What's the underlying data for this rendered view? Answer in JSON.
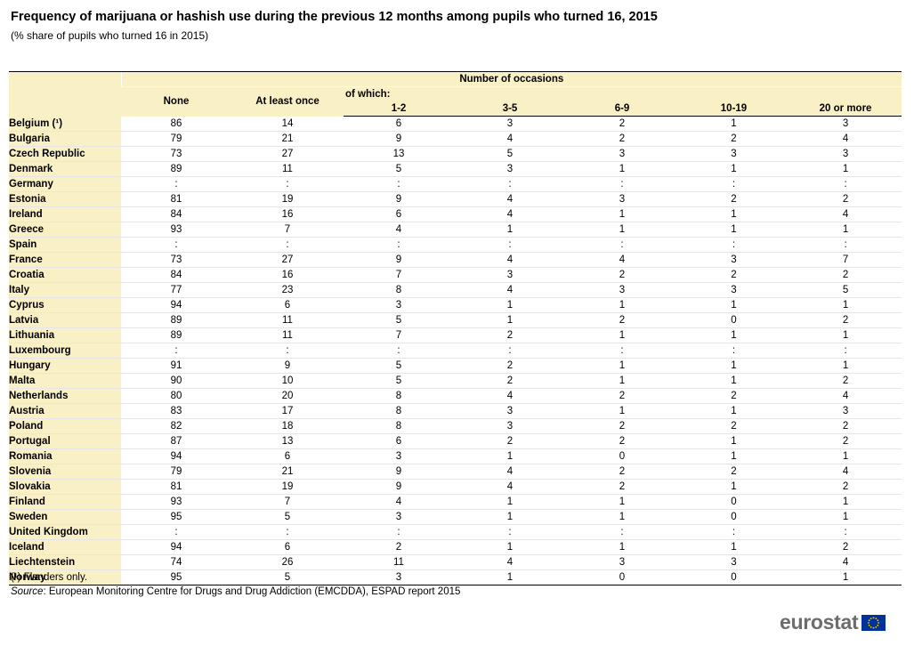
{
  "title": "Frequency of marijuana or hashish use during the previous 12 months among pupils who turned 16, 2015",
  "subtitle": "(% share of pupils who turned 16 in 2015)",
  "table": {
    "group_header": "Number of occasions",
    "of_which": "of which:",
    "columns": [
      "None",
      "At least once",
      "1-2",
      "3-5",
      "6-9",
      "10-19",
      "20 or more"
    ],
    "rows": [
      {
        "country": "Belgium (¹)",
        "values": [
          "86",
          "14",
          "6",
          "3",
          "2",
          "1",
          "3"
        ]
      },
      {
        "country": "Bulgaria",
        "values": [
          "79",
          "21",
          "9",
          "4",
          "2",
          "2",
          "4"
        ]
      },
      {
        "country": "Czech Republic",
        "values": [
          "73",
          "27",
          "13",
          "5",
          "3",
          "3",
          "3"
        ]
      },
      {
        "country": "Denmark",
        "values": [
          "89",
          "11",
          "5",
          "3",
          "1",
          "1",
          "1"
        ]
      },
      {
        "country": "Germany",
        "values": [
          ":",
          ":",
          ":",
          ":",
          ":",
          ":",
          ":"
        ]
      },
      {
        "country": "Estonia",
        "values": [
          "81",
          "19",
          "9",
          "4",
          "3",
          "2",
          "2"
        ]
      },
      {
        "country": "Ireland",
        "values": [
          "84",
          "16",
          "6",
          "4",
          "1",
          "1",
          "4"
        ]
      },
      {
        "country": "Greece",
        "values": [
          "93",
          "7",
          "4",
          "1",
          "1",
          "1",
          "1"
        ]
      },
      {
        "country": "Spain",
        "values": [
          ":",
          ":",
          ":",
          ":",
          ":",
          ":",
          ":"
        ]
      },
      {
        "country": "France",
        "values": [
          "73",
          "27",
          "9",
          "4",
          "4",
          "3",
          "7"
        ]
      },
      {
        "country": "Croatia",
        "values": [
          "84",
          "16",
          "7",
          "3",
          "2",
          "2",
          "2"
        ]
      },
      {
        "country": "Italy",
        "values": [
          "77",
          "23",
          "8",
          "4",
          "3",
          "3",
          "5"
        ]
      },
      {
        "country": "Cyprus",
        "values": [
          "94",
          "6",
          "3",
          "1",
          "1",
          "1",
          "1"
        ]
      },
      {
        "country": "Latvia",
        "values": [
          "89",
          "11",
          "5",
          "1",
          "2",
          "0",
          "2"
        ]
      },
      {
        "country": "Lithuania",
        "values": [
          "89",
          "11",
          "7",
          "2",
          "1",
          "1",
          "1"
        ]
      },
      {
        "country": "Luxembourg",
        "values": [
          ":",
          ":",
          ":",
          ":",
          ":",
          ":",
          ":"
        ]
      },
      {
        "country": "Hungary",
        "values": [
          "91",
          "9",
          "5",
          "2",
          "1",
          "1",
          "1"
        ]
      },
      {
        "country": "Malta",
        "values": [
          "90",
          "10",
          "5",
          "2",
          "1",
          "1",
          "2"
        ]
      },
      {
        "country": "Netherlands",
        "values": [
          "80",
          "20",
          "8",
          "4",
          "2",
          "2",
          "4"
        ]
      },
      {
        "country": "Austria",
        "values": [
          "83",
          "17",
          "8",
          "3",
          "1",
          "1",
          "3"
        ]
      },
      {
        "country": "Poland",
        "values": [
          "82",
          "18",
          "8",
          "3",
          "2",
          "2",
          "2"
        ]
      },
      {
        "country": "Portugal",
        "values": [
          "87",
          "13",
          "6",
          "2",
          "2",
          "1",
          "2"
        ]
      },
      {
        "country": "Romania",
        "values": [
          "94",
          "6",
          "3",
          "1",
          "0",
          "1",
          "1"
        ]
      },
      {
        "country": "Slovenia",
        "values": [
          "79",
          "21",
          "9",
          "4",
          "2",
          "2",
          "4"
        ]
      },
      {
        "country": "Slovakia",
        "values": [
          "81",
          "19",
          "9",
          "4",
          "2",
          "1",
          "2"
        ]
      },
      {
        "country": "Finland",
        "values": [
          "93",
          "7",
          "4",
          "1",
          "1",
          "0",
          "1"
        ]
      },
      {
        "country": "Sweden",
        "values": [
          "95",
          "5",
          "3",
          "1",
          "1",
          "0",
          "1"
        ]
      },
      {
        "country": "United Kingdom",
        "values": [
          ":",
          ":",
          ":",
          ":",
          ":",
          ":",
          ":"
        ]
      },
      {
        "country": "Iceland",
        "values": [
          "94",
          "6",
          "2",
          "1",
          "1",
          "1",
          "2"
        ]
      },
      {
        "country": "Liechtenstein",
        "values": [
          "74",
          "26",
          "11",
          "4",
          "3",
          "3",
          "4"
        ]
      },
      {
        "country": "Norway",
        "values": [
          "95",
          "5",
          "3",
          "1",
          "0",
          "0",
          "1"
        ]
      }
    ]
  },
  "footnote": "(¹) Flanders only.",
  "source": {
    "label": "Source",
    "text": ": European Monitoring Centre for Drugs and Drug Addiction (EMCDDA), ESPAD report 2015"
  },
  "logo": {
    "text": "eurostat",
    "flag_colors": {
      "background": "#003399",
      "stars": "#ffcc00"
    }
  },
  "colors": {
    "header_background": "#faf0c6"
  }
}
